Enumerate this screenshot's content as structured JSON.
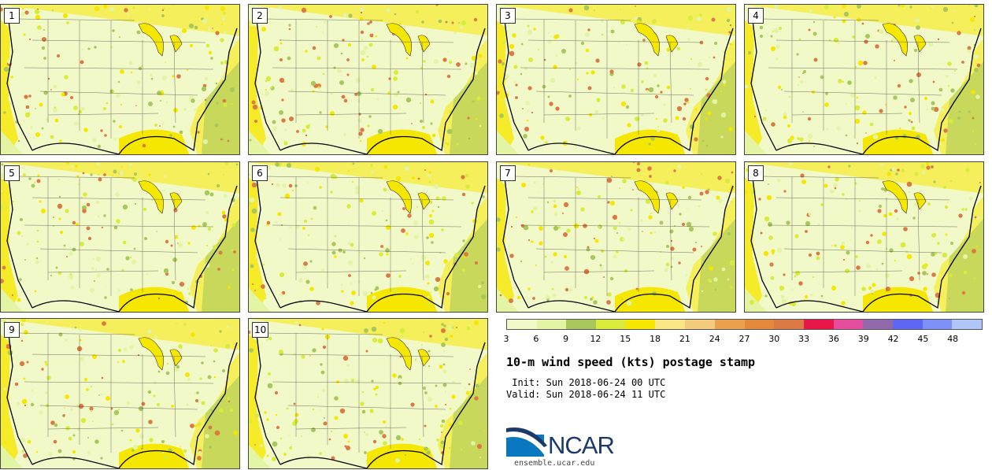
{
  "panels": [
    {
      "label": "1"
    },
    {
      "label": "2"
    },
    {
      "label": "3"
    },
    {
      "label": "4"
    },
    {
      "label": "5"
    },
    {
      "label": "6"
    },
    {
      "label": "7"
    },
    {
      "label": "8"
    },
    {
      "label": "9"
    },
    {
      "label": "10"
    }
  ],
  "colorbar": {
    "colors": [
      "#f2f9c9",
      "#e4f4a5",
      "#a8c85c",
      "#d9ec3c",
      "#f6e700",
      "#fbe884",
      "#f4cc80",
      "#eba24e",
      "#e4883c",
      "#dc7a44",
      "#e8174a",
      "#e44e9c",
      "#926aac",
      "#5e66f4",
      "#7e91f7",
      "#b0c6f9"
    ],
    "tick_labels": [
      "3",
      "6",
      "9",
      "12",
      "15",
      "18",
      "21",
      "24",
      "27",
      "30",
      "33",
      "36",
      "39",
      "42",
      "45",
      "48"
    ]
  },
  "title": "10-m wind speed (kts) postage stamp",
  "init": " Init: Sun 2018-06-24 00 UTC",
  "valid": "Valid: Sun 2018-06-24 11 UTC",
  "logo": {
    "text": "NCAR",
    "site": "ensemble.ucar.edu"
  }
}
